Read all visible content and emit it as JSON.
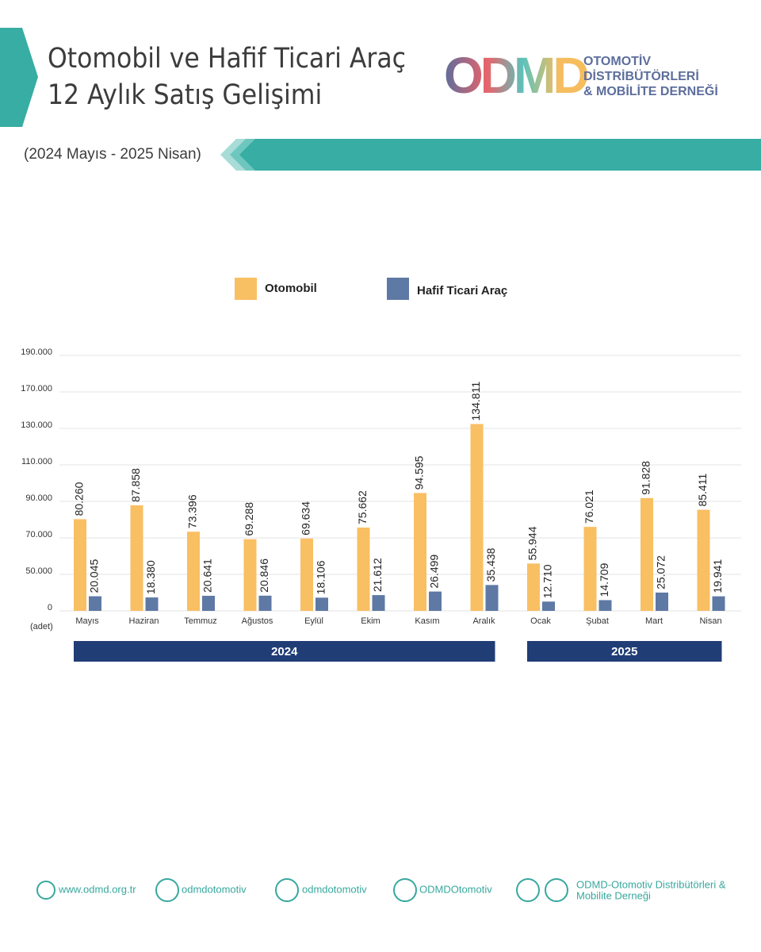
{
  "header": {
    "title_lines": [
      "Otomobil ve Hafif Ticari Araç",
      "12 Aylık Satış Gelişimi"
    ],
    "subtitle": "(2024 Mayıs - 2025 Nisan)",
    "logo": "ODMD",
    "logo_lines": [
      "OTOMOTİV",
      "DİSTRİBÜTÖRLERİ",
      "& MOBİLİTE DERNEĞİ"
    ]
  },
  "chart_data": {
    "type": "bar",
    "y_label": "(adet)",
    "categories": [
      "Mayıs",
      "Haziran",
      "Temmuz",
      "Ağustos",
      "Eylül",
      "Ekim",
      "Kasım",
      "Aralık",
      "Ocak",
      "Şubat",
      "Mart",
      "Nisan"
    ],
    "year_labels": [
      "2024",
      "2025"
    ],
    "series": [
      {
        "name": "Otomobil",
        "color": "#f9bf63",
        "values": [
          80260,
          87858,
          73396,
          69288,
          69634,
          75662,
          94595,
          134811,
          55944,
          76021,
          91828,
          85411
        ],
        "value_labels": [
          "80.260",
          "87.858",
          "73.396",
          "69.288",
          "69.634",
          "75.662",
          "94.595",
          "134.811",
          "55.944",
          "76.021",
          "91.828",
          "85.411"
        ]
      },
      {
        "name": "Hafif Ticari Araç",
        "color": "#5e79a4",
        "values": [
          20045,
          18380,
          20641,
          20846,
          18106,
          21612,
          26499,
          35438,
          12710,
          14709,
          25072,
          19941
        ],
        "value_labels": [
          "20.045",
          "18.380",
          "20.641",
          "20.846",
          "18.106",
          "21.612",
          "26.499",
          "35.438",
          "12.710",
          "14.709",
          "25.072",
          "19.941"
        ]
      }
    ],
    "ylim": [
      0,
      190000
    ],
    "yticks": [
      0,
      {
        "value": 50000,
        "label": "50.000"
      },
      {
        "value": 70000,
        "label": "70.000"
      },
      {
        "value": 90000,
        "label": "90.000"
      },
      {
        "value": 110000,
        "label": "110.000"
      },
      {
        "value": 130000,
        "label": "130.000"
      },
      {
        "value": 170000,
        "label": "170.000"
      },
      {
        "value": 190000,
        "label": "190.000"
      }
    ],
    "grid": true
  },
  "footer": {
    "website": "www.odmd.org.tr",
    "twitter": "odmdotomotiv",
    "instagram": "odmdotomotiv",
    "facebook": "ODMDOtomotiv",
    "organization_lines": [
      "ODMD-Otomotiv Distribütörleri &",
      "Mobilite Derneği"
    ]
  }
}
